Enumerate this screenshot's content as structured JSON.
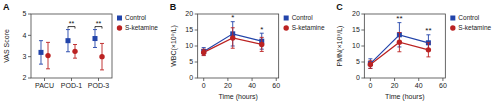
{
  "chart_data": [
    {
      "type": "point",
      "title": "A",
      "ylabel": "VAS Score",
      "categories": [
        "PACU",
        "POD-1",
        "POD-3"
      ],
      "series": [
        {
          "name": "Control",
          "color": "#2244aa",
          "marker": "square",
          "values": [
            3.2,
            3.75,
            3.85
          ],
          "errors": [
            0.55,
            0.52,
            0.42
          ]
        },
        {
          "name": "S-ketamine",
          "color": "#bb2222",
          "marker": "circle",
          "values": [
            3.05,
            3.25,
            3.0
          ],
          "errors": [
            0.62,
            0.32,
            0.62
          ]
        }
      ],
      "ylim": [
        2,
        5
      ],
      "yticks": [
        2,
        3,
        4,
        5
      ],
      "legend": "right",
      "annotations": [
        {
          "text": "**",
          "x": "POD-1"
        },
        {
          "text": "**",
          "x": "POD-3"
        }
      ]
    },
    {
      "type": "line",
      "title": "B",
      "xlabel": "Time (hours)",
      "ylabel": "WBC(×10⁹/L)",
      "x": [
        0,
        24,
        48
      ],
      "series": [
        {
          "name": "Control",
          "color": "#2244aa",
          "marker": "square",
          "values": [
            8.3,
            13.8,
            11.5
          ],
          "errors": [
            1.2,
            3.8,
            2.5
          ]
        },
        {
          "name": "S-ketamine",
          "color": "#bb2222",
          "marker": "circle",
          "values": [
            8.0,
            12.5,
            10.5
          ],
          "errors": [
            1.0,
            3.2,
            2.2
          ]
        }
      ],
      "xlim": [
        -5,
        62
      ],
      "xticks": [
        0,
        20,
        40,
        60
      ],
      "ylim": [
        0,
        20
      ],
      "yticks": [
        0,
        5,
        10,
        15,
        20
      ],
      "legend": "right",
      "annotations": [
        {
          "text": "*",
          "x": 24
        },
        {
          "text": "*",
          "x": 48
        }
      ]
    },
    {
      "type": "line",
      "title": "C",
      "xlabel": "Time (hours)",
      "ylabel": "PMN(×10⁹/L)",
      "x": [
        0,
        24,
        48
      ],
      "series": [
        {
          "name": "Control",
          "color": "#2244aa",
          "marker": "square",
          "values": [
            4.5,
            13.5,
            11.0
          ],
          "errors": [
            1.5,
            3.8,
            2.5
          ]
        },
        {
          "name": "S-ketamine",
          "color": "#bb2222",
          "marker": "circle",
          "values": [
            4.2,
            11.2,
            8.8
          ],
          "errors": [
            1.2,
            3.0,
            2.2
          ]
        }
      ],
      "xlim": [
        -5,
        62
      ],
      "xticks": [
        0,
        20,
        40,
        60
      ],
      "ylim": [
        0,
        20
      ],
      "yticks": [
        0,
        5,
        10,
        15,
        20
      ],
      "legend": "right",
      "annotations": [
        {
          "text": "**",
          "x": 24
        },
        {
          "text": "**",
          "x": 48
        }
      ]
    }
  ]
}
